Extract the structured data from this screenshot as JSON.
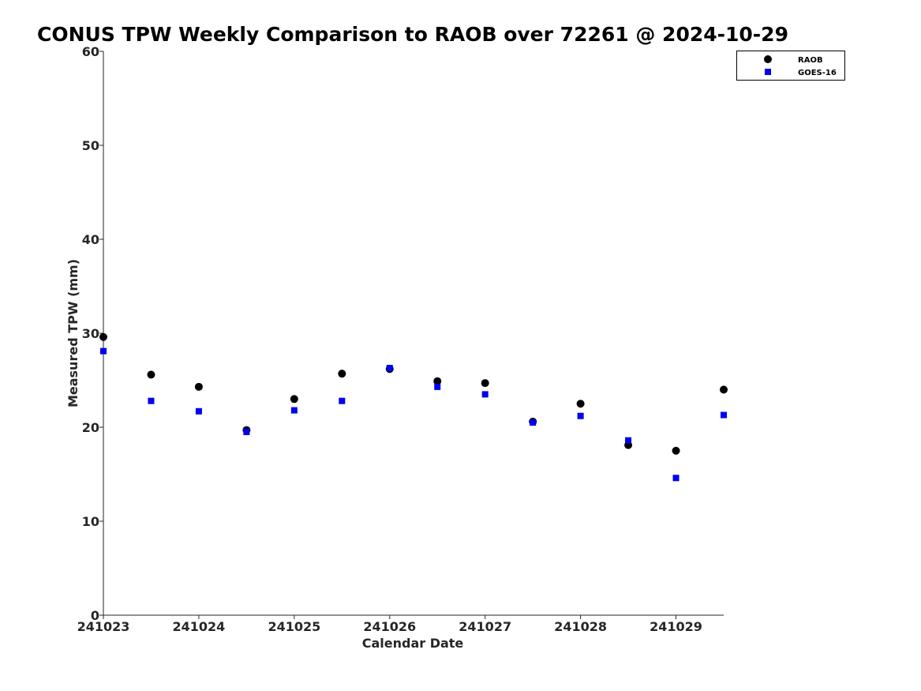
{
  "chart_data": {
    "type": "scatter",
    "title": "CONUS TPW Weekly Comparison to RAOB over 72261 @ 2024-10-29",
    "xlabel": "Calendar Date",
    "ylabel": "Measured TPW (mm)",
    "xlim": [
      "2024-10-23 00:00",
      "2024-10-29 12:00"
    ],
    "ylim": [
      0,
      60
    ],
    "x_ticks": [
      "241023",
      "241024",
      "241025",
      "241026",
      "241027",
      "241028",
      "241029"
    ],
    "y_ticks": [
      0,
      10,
      20,
      30,
      40,
      50,
      60
    ],
    "x": [
      "2024-10-23 00:00",
      "2024-10-23 12:00",
      "2024-10-24 00:00",
      "2024-10-24 12:00",
      "2024-10-25 00:00",
      "2024-10-25 12:00",
      "2024-10-26 00:00",
      "2024-10-26 12:00",
      "2024-10-27 00:00",
      "2024-10-27 12:00",
      "2024-10-28 00:00",
      "2024-10-28 12:00",
      "2024-10-29 00:00",
      "2024-10-29 12:00"
    ],
    "series": [
      {
        "name": "RAOB",
        "marker": "circle",
        "color": "#000000",
        "values": [
          29.6,
          25.6,
          24.3,
          19.7,
          23.0,
          25.7,
          26.2,
          24.9,
          24.7,
          20.6,
          22.5,
          18.1,
          17.5,
          24.0
        ]
      },
      {
        "name": "GOES-16",
        "marker": "square",
        "color": "#0000ee",
        "values": [
          28.1,
          22.8,
          21.7,
          19.5,
          21.8,
          22.8,
          26.3,
          24.3,
          23.5,
          20.5,
          21.2,
          18.6,
          14.6,
          21.3
        ]
      }
    ],
    "grid": false,
    "legend_position": "top-right"
  }
}
